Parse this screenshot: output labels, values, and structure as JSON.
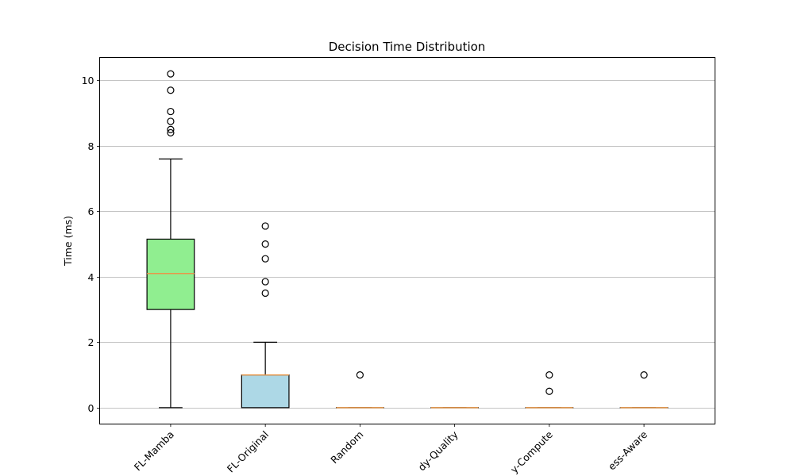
{
  "chart_data": {
    "type": "box",
    "title": "Decision Time Distribution",
    "xlabel": "",
    "ylabel": "Time (ms)",
    "ylim": [
      -0.5,
      10.7
    ],
    "yticks": [
      0,
      2,
      4,
      6,
      8,
      10
    ],
    "grid": "y",
    "colors": {
      "median": "#e8974a",
      "edge": "#000000",
      "grid": "#b0b0b0"
    },
    "categories": [
      "FL-Mamba",
      "FL-Original",
      "Random",
      "dy-Quality",
      "y-Compute",
      "ess-Aware"
    ],
    "series": [
      {
        "category": "FL-Mamba",
        "fill": "#90ee90",
        "whisker_low": 0,
        "q1": 3.0,
        "median": 4.1,
        "q3": 5.15,
        "whisker_high": 7.6,
        "outliers": [
          8.4,
          8.5,
          8.75,
          9.05,
          9.7,
          10.2
        ]
      },
      {
        "category": "FL-Original",
        "fill": "#add8e6",
        "whisker_low": 0,
        "q1": 0,
        "median": 1.0,
        "q3": 1.0,
        "whisker_high": 2.0,
        "outliers": [
          3.5,
          3.85,
          4.55,
          5.0,
          5.55
        ]
      },
      {
        "category": "Random",
        "fill": "#ffffff",
        "whisker_low": 0,
        "q1": 0,
        "median": 0,
        "q3": 0,
        "whisker_high": 0,
        "outliers": [
          1.0
        ]
      },
      {
        "category": "dy-Quality",
        "fill": "#ffffff",
        "whisker_low": 0,
        "q1": 0,
        "median": 0,
        "q3": 0,
        "whisker_high": 0,
        "outliers": []
      },
      {
        "category": "y-Compute",
        "fill": "#ffffff",
        "whisker_low": 0,
        "q1": 0,
        "median": 0,
        "q3": 0,
        "whisker_high": 0,
        "outliers": [
          0.5,
          1.0
        ]
      },
      {
        "category": "ess-Aware",
        "fill": "#ffffff",
        "whisker_low": 0,
        "q1": 0,
        "median": 0,
        "q3": 0,
        "whisker_high": 0,
        "outliers": [
          1.0
        ]
      }
    ]
  }
}
